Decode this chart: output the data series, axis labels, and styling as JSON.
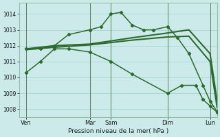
{
  "bg_color": "#cceaea",
  "grid_color": "#aad4d4",
  "line_color": "#2d6a2d",
  "xlabel": "Pression niveau de la mer( hPa )",
  "ylim": [
    1007.5,
    1014.7
  ],
  "yticks": [
    1008,
    1009,
    1010,
    1011,
    1012,
    1013,
    1014
  ],
  "xlim": [
    0,
    14
  ],
  "xtick_positions": [
    0.5,
    5.0,
    6.5,
    10.5,
    13.5
  ],
  "xtick_labels": [
    "Ven",
    "Mar",
    "Sam",
    "Dim",
    "Lun"
  ],
  "vline_positions": [
    0.5,
    5.0,
    6.5,
    10.5,
    13.5
  ],
  "series": [
    {
      "x": [
        0.5,
        1.5,
        2.5,
        3.5,
        5.0,
        5.8,
        6.5,
        7.2,
        8.0,
        8.8,
        9.5,
        10.5,
        11.2,
        12.0,
        13.0,
        13.5,
        14.0
      ],
      "y": [
        1011.8,
        1011.8,
        1012.0,
        1012.7,
        1013.0,
        1013.2,
        1014.0,
        1014.1,
        1013.3,
        1013.0,
        1013.0,
        1013.2,
        1012.5,
        1011.5,
        1009.5,
        1008.5,
        1007.85
      ],
      "marker": true,
      "lw": 1.1
    },
    {
      "x": [
        0.5,
        2.5,
        5.0,
        6.5,
        8.0,
        10.5,
        12.0,
        13.5,
        14.0
      ],
      "y": [
        1011.8,
        1012.0,
        1012.1,
        1012.3,
        1012.5,
        1012.8,
        1013.0,
        1011.5,
        1008.5
      ],
      "marker": false,
      "lw": 1.5
    },
    {
      "x": [
        0.5,
        2.5,
        5.0,
        6.5,
        8.0,
        10.5,
        12.0,
        13.5,
        14.0
      ],
      "y": [
        1011.75,
        1011.9,
        1012.05,
        1012.2,
        1012.35,
        1012.55,
        1012.6,
        1011.0,
        1008.1
      ],
      "marker": false,
      "lw": 1.5
    },
    {
      "x": [
        0.5,
        1.5,
        2.5,
        3.5,
        5.0,
        6.5,
        8.0,
        10.5,
        11.5,
        12.5,
        13.0,
        13.5,
        14.0
      ],
      "y": [
        1010.3,
        1011.0,
        1011.8,
        1011.8,
        1011.6,
        1011.0,
        1010.2,
        1009.0,
        1009.5,
        1009.5,
        1008.6,
        1008.2,
        1007.8
      ],
      "marker": true,
      "lw": 1.1
    }
  ]
}
